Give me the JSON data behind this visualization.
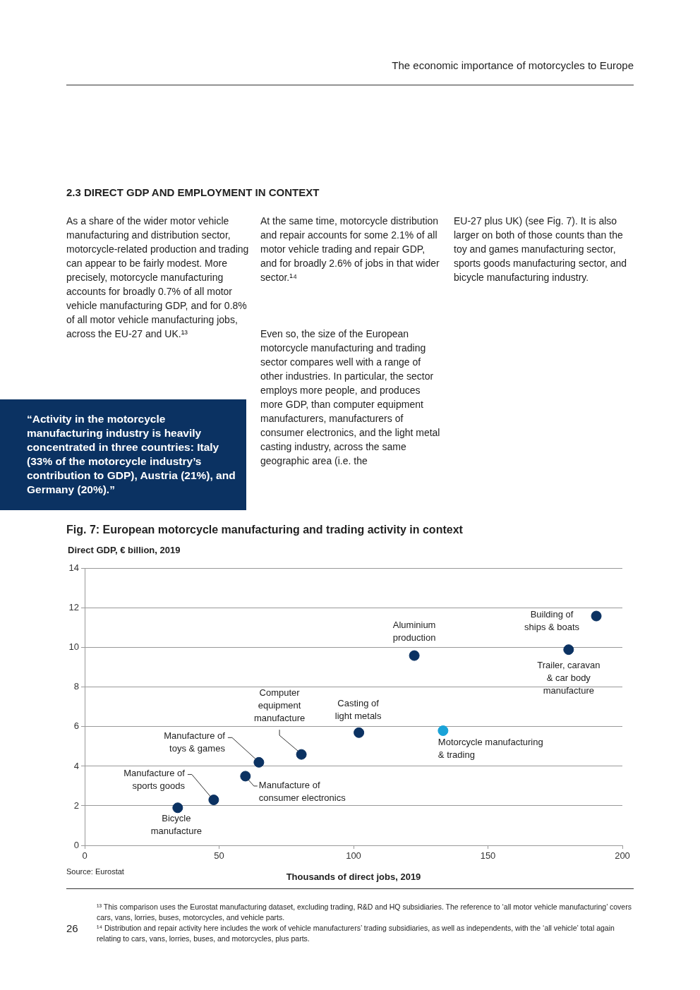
{
  "chart_data": {
    "type": "scatter",
    "title": "Fig. 7: European motorcycle manufacturing and trading activity in context",
    "ylabel": "Direct GDP, € billion, 2019",
    "xlabel": "Thousands of direct jobs, 2019",
    "x": [
      34.6,
      48,
      59.8,
      64.8,
      80.6,
      102,
      122.6,
      133.3,
      180,
      190.3
    ],
    "values": [
      1.9,
      2.3,
      3.5,
      4.2,
      4.6,
      5.7,
      9.6,
      5.8,
      9.9,
      11.6
    ],
    "colors": [
      "#0b3262",
      "#0b3262",
      "#0b3262",
      "#0b3262",
      "#0b3262",
      "#0b3262",
      "#0b3262",
      "#1aa3d8",
      "#0b3262",
      "#0b3262"
    ],
    "xlim": [
      0,
      200
    ],
    "xticks": [
      0,
      50,
      100,
      150,
      200
    ],
    "ylim": [
      0,
      14
    ],
    "yticks": [
      0,
      2,
      4,
      6,
      8,
      10,
      12,
      14
    ],
    "grid": "y",
    "marker": "circle",
    "annotations": [
      {
        "text": "Bicycle\nmanufacture",
        "x": 34.6,
        "y": 1.9
      },
      {
        "text": "Manufacture of\nsports goods",
        "x": 48,
        "y": 2.3
      },
      {
        "text": "Manufacture of\nconsumer electronics",
        "x": 59.8,
        "y": 3.5
      },
      {
        "text": "Manufacture of\ntoys & games",
        "x": 64.8,
        "y": 4.2
      },
      {
        "text": "Computer\nequipment\nmanufacture",
        "x": 80.6,
        "y": 4.6
      },
      {
        "text": "Casting of\nlight metals",
        "x": 102,
        "y": 5.7
      },
      {
        "text": "Aluminium\nproduction",
        "x": 122.6,
        "y": 9.6
      },
      {
        "text": "Motorcycle manufacturing\n& trading",
        "x": 133.3,
        "y": 5.8
      },
      {
        "text": "Trailer, caravan\n& car body\nmanufacture",
        "x": 180,
        "y": 9.9
      },
      {
        "text": "Building of\nships & boats",
        "x": 190.3,
        "y": 11.6
      },
      "The economic importance of motorcycles to Europe",
      "2.3 DIRECT GDP AND EMPLOYMENT IN CONTEXT",
      "As a share of the wider motor vehicle manufacturing and distribution sector, motorcycle-related production and trading can appear to be fairly modest. More precisely, motorcycle manufacturing accounts for broadly 0.7% of all motor vehicle manufacturing GDP, and for 0.8% of all motor vehicle manufacturing jobs, across the EU-27 and UK.¹³",
      "At the same time, motorcycle distribution and repair accounts for some 2.1% of all motor vehicle trading and repair GDP, and for broadly 2.6% of jobs in that wider sector.¹⁴",
      "Even so, the size of the European motorcycle manufacturing and trading sector compares well with a range of other industries. In particular, the sector employs more people, and produces more GDP, than computer equipment manufacturers, manufacturers of consumer electronics, and the light metal casting industry, across the same geographic area (i.e. the",
      "EU-27 plus UK) (see Fig. 7). It is also larger on both of those counts than the toy and games manufacturing sector, sports goods manufacturing sector, and bicycle manufacturing industry.",
      "“Activity in the motorcycle manufacturing industry is heavily concentrated in three countries: Italy (33% of the motorcycle industry’s contribution to GDP), Austria (21%), and Germany (20%).”",
      "Source: Eurostat",
      "¹³ This comparison uses the Eurostat manufacturing dataset, excluding trading, R&D and HQ subsidiaries. The reference to ‘all motor vehicle manufacturing’ covers cars, vans, lorries, buses, motorcycles, and vehicle parts.",
      "¹⁴ Distribution and repair activity here includes the work of vehicle manufacturers’ trading subsidiaries, as well as independents, with the ‘all vehicle’ total again relating to cars, vans, lorries, buses, and motorcycles, plus parts.",
      "26"
    ]
  }
}
